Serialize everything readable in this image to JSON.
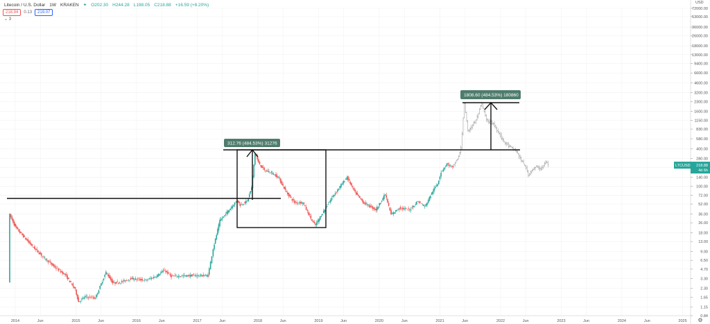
{
  "header": {
    "symbol": "Litecoin / U.S. Dollar",
    "interval": "1W",
    "exchange": "KRAKEN",
    "status_icon": "green-dot-icon",
    "open": "O202.30",
    "high": "H244.28",
    "low": "L198.05",
    "close": "C218.88",
    "change": "+16.59 (+8.20%)",
    "sell_price": "218.94",
    "spread": "0.13",
    "buy_price": "219.07",
    "collapse_label": "3"
  },
  "colors": {
    "up": "#26a69a",
    "down": "#ef5350",
    "projection": "#9e9e9e",
    "annotation_bg": "#4f7c6c",
    "price_label_bg": "#26a69a"
  },
  "chart_data": {
    "type": "candlestick",
    "scale": "log",
    "currency": "USD",
    "y_ticks": [
      "72000.00",
      "53000.00",
      "36000.00",
      "26000.00",
      "18000.00",
      "13000.00",
      "9400.00",
      "6600.00",
      "4600.00",
      "3200.00",
      "2300.00",
      "1600.00",
      "1150.00",
      "830.00",
      "580.00",
      "400.00",
      "280.00",
      "200.00",
      "140.00",
      "100.00",
      "72.00",
      "52.00",
      "36.00",
      "26.00",
      "18.00",
      "13.00",
      "9.00",
      "6.50",
      "4.70",
      "3.30",
      "2.30",
      "1.65",
      "1.15",
      "0.84"
    ],
    "x_ticks": [
      "2014",
      "Jun",
      "2015",
      "Jun",
      "2016",
      "Jun",
      "2017",
      "Jun",
      "2018",
      "Jun",
      "2019",
      "Jun",
      "2020",
      "Jun",
      "2021",
      "Jun",
      "2022",
      "Jun",
      "2023",
      "Jun",
      "2024",
      "Jun",
      "2025"
    ],
    "last_price_label": "LTCUSD",
    "last_price": "218.88",
    "countdown": "4d 6h",
    "path_points": [
      [
        "2013-11-25",
        3.0
      ],
      [
        "2013-12-02",
        35
      ],
      [
        "2014-01-06",
        22
      ],
      [
        "2014-03-01",
        15
      ],
      [
        "2014-05-01",
        10
      ],
      [
        "2014-07-01",
        7
      ],
      [
        "2014-09-01",
        5
      ],
      [
        "2014-11-01",
        3.8
      ],
      [
        "2015-01-01",
        2.2
      ],
      [
        "2015-01-20",
        1.4
      ],
      [
        "2015-03-01",
        1.7
      ],
      [
        "2015-05-01",
        1.6
      ],
      [
        "2015-07-05",
        4.2
      ],
      [
        "2015-08-15",
        2.8
      ],
      [
        "2015-10-01",
        2.9
      ],
      [
        "2015-12-01",
        3.3
      ],
      [
        "2016-03-01",
        3.1
      ],
      [
        "2016-05-01",
        3.6
      ],
      [
        "2016-06-20",
        4.5
      ],
      [
        "2016-08-01",
        3.6
      ],
      [
        "2016-12-01",
        3.7
      ],
      [
        "2017-03-10",
        3.7
      ],
      [
        "2017-04-10",
        10
      ],
      [
        "2017-05-20",
        28
      ],
      [
        "2017-07-15",
        42
      ],
      [
        "2017-09-01",
        60
      ],
      [
        "2017-09-20",
        50
      ],
      [
        "2017-11-01",
        58
      ],
      [
        "2017-11-27",
        95
      ],
      [
        "2017-12-18",
        340
      ],
      [
        "2018-01-08",
        240
      ],
      [
        "2018-02-12",
        180
      ],
      [
        "2018-03-19",
        170
      ],
      [
        "2018-05-07",
        140
      ],
      [
        "2018-06-25",
        80
      ],
      [
        "2018-08-13",
        55
      ],
      [
        "2018-10-01",
        55
      ],
      [
        "2018-12-03",
        26
      ],
      [
        "2018-12-17",
        24
      ],
      [
        "2019-02-04",
        40
      ],
      [
        "2019-04-01",
        70
      ],
      [
        "2019-06-24",
        140
      ],
      [
        "2019-08-12",
        80
      ],
      [
        "2019-10-01",
        55
      ],
      [
        "2019-12-16",
        42
      ],
      [
        "2020-02-10",
        75
      ],
      [
        "2020-03-16",
        35
      ],
      [
        "2020-05-04",
        45
      ],
      [
        "2020-07-06",
        42
      ],
      [
        "2020-08-24",
        58
      ],
      [
        "2020-10-05",
        47
      ],
      [
        "2020-11-23",
        85
      ],
      [
        "2020-12-21",
        110
      ],
      [
        "2021-01-11",
        170
      ],
      [
        "2021-02-15",
        230
      ],
      [
        "2021-03-22",
        200
      ]
    ],
    "projection_points": [
      [
        "2021-03-22",
        200
      ],
      [
        "2021-04-26",
        300
      ],
      [
        "2021-05-10",
        410
      ],
      [
        "2021-05-31",
        2150
      ],
      [
        "2021-06-21",
        760
      ],
      [
        "2021-08-09",
        1150
      ],
      [
        "2021-09-13",
        2150
      ],
      [
        "2021-10-11",
        1150
      ],
      [
        "2021-11-22",
        1000
      ],
      [
        "2021-12-27",
        700
      ],
      [
        "2022-01-24",
        520
      ],
      [
        "2022-03-07",
        420
      ],
      [
        "2022-04-11",
        360
      ],
      [
        "2022-05-09",
        260
      ],
      [
        "2022-06-06",
        200
      ],
      [
        "2022-06-20",
        150
      ],
      [
        "2022-07-11",
        185
      ],
      [
        "2022-08-08",
        205
      ],
      [
        "2022-09-05",
        190
      ],
      [
        "2022-10-03",
        245
      ],
      [
        "2022-10-17",
        225
      ]
    ],
    "annotations": {
      "label1": "312.76 (484.53%) 31276",
      "label2": "1808.60 (484.53%) 180860"
    }
  }
}
